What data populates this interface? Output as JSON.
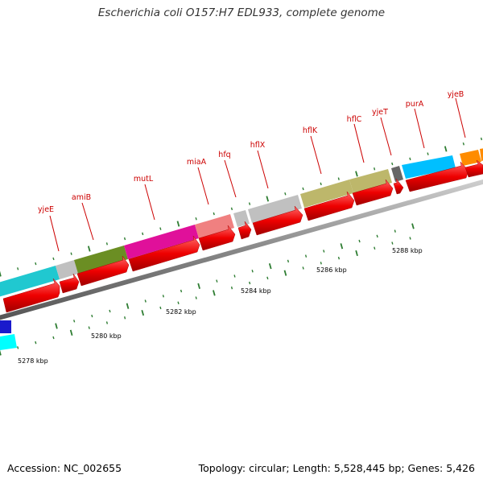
{
  "title": "Escherichia coli O157:H7 EDL933, complete genome",
  "footer": {
    "accession": "Accession: NC_002655",
    "summary": "Topology: circular; Length: 5,528,445 bp; Genes: 5,426"
  },
  "colors": {
    "cds_red": "#ee0000",
    "backbone": "#888888",
    "tick": "#2e7d32",
    "label": "#cc0000"
  },
  "scale_labels": [
    "5278 kbp",
    "5280 kbp",
    "5282 kbp",
    "5284 kbp",
    "5286 kbp",
    "5288 kbp"
  ],
  "genes": [
    {
      "name": "yjeE",
      "color": "#c0c0c0"
    },
    {
      "name": "amiB",
      "color": "#6b8e23"
    },
    {
      "name": "mutL",
      "color": "#e0109a"
    },
    {
      "name": "miaA",
      "color": "#f08080"
    },
    {
      "name": "hfq",
      "color": "#c0c0c0"
    },
    {
      "name": "hflX",
      "color": "#c0c0c0"
    },
    {
      "name": "hflK",
      "color": "#bdb76b"
    },
    {
      "name": "hflC",
      "color": "#bdb76b"
    },
    {
      "name": "yjeT",
      "color": "#666666"
    },
    {
      "name": "purA",
      "color": "#00bfff"
    },
    {
      "name": "yjeB",
      "color": "#ff8c00"
    }
  ]
}
